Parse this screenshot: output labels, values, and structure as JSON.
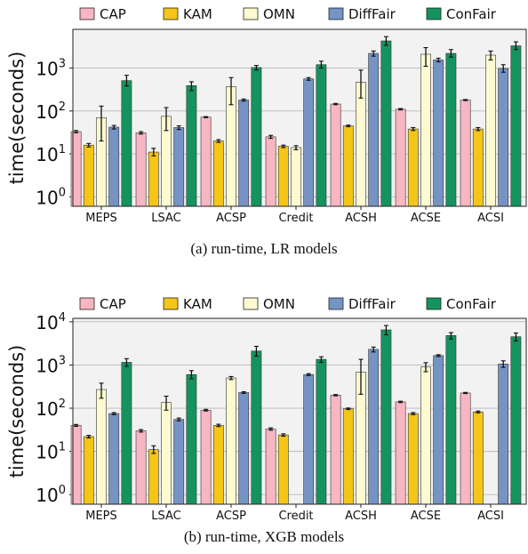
{
  "chart_data": [
    {
      "type": "bar",
      "caption": "(a) run-time, LR models",
      "ylabel": "time(seconds)",
      "yscale": "log",
      "ylim": [
        0.6,
        8000
      ],
      "yticks": [
        1,
        10,
        100,
        1000
      ],
      "ytick_labels": [
        [
          "10",
          "0"
        ],
        [
          "10",
          "1"
        ],
        [
          "10",
          "2"
        ],
        [
          "10",
          "3"
        ]
      ],
      "grid": true,
      "legend_position": "top",
      "categories": [
        "MEPS",
        "LSAC",
        "ACSP",
        "Credit",
        "ACSH",
        "ACSE",
        "ACSI"
      ],
      "series": [
        {
          "name": "CAP",
          "color": "#f7b6c2",
          "values": [
            33,
            31,
            72,
            25,
            145,
            110,
            180
          ],
          "err_low": [
            31,
            29,
            70,
            23,
            140,
            106,
            175
          ],
          "err_high": [
            35,
            33,
            74,
            27,
            150,
            114,
            185
          ]
        },
        {
          "name": "KAM",
          "color": "#f5c518",
          "values": [
            16,
            11,
            20,
            15,
            45,
            38,
            38
          ],
          "err_low": [
            14.5,
            9,
            18.5,
            14,
            43,
            35,
            35
          ],
          "err_high": [
            17.5,
            13.5,
            21.5,
            16,
            47,
            41,
            41
          ]
        },
        {
          "name": "OMN",
          "color": "#fdf9d0",
          "values": [
            70,
            75,
            370,
            14,
            470,
            2100,
            2000
          ],
          "err_low": [
            20,
            35,
            140,
            12.5,
            200,
            1100,
            1550
          ],
          "err_high": [
            130,
            120,
            600,
            15.5,
            900,
            3000,
            2500
          ]
        },
        {
          "name": "DiffFair",
          "color": "#7593c3",
          "values": [
            42,
            41,
            180,
            560,
            2200,
            1550,
            980
          ],
          "err_low": [
            38,
            37,
            170,
            520,
            1900,
            1400,
            800
          ],
          "err_high": [
            46,
            45,
            190,
            600,
            2500,
            1700,
            1200
          ]
        },
        {
          "name": "ConFair",
          "color": "#15935f",
          "values": [
            510,
            390,
            1030,
            1200,
            4300,
            2200,
            3300
          ],
          "err_low": [
            380,
            300,
            900,
            1000,
            3400,
            1800,
            2700
          ],
          "err_high": [
            680,
            480,
            1150,
            1450,
            5400,
            2700,
            4100
          ]
        }
      ]
    },
    {
      "type": "bar",
      "caption": "(b) run-time, XGB models",
      "ylabel": "time(seconds)",
      "yscale": "log",
      "ylim": [
        0.6,
        12000
      ],
      "yticks": [
        1,
        10,
        100,
        1000,
        10000
      ],
      "ytick_labels": [
        [
          "10",
          "0"
        ],
        [
          "10",
          "1"
        ],
        [
          "10",
          "2"
        ],
        [
          "10",
          "3"
        ],
        [
          "10",
          "4"
        ]
      ],
      "grid": true,
      "legend_position": "top",
      "categories": [
        "MEPS",
        "LSAC",
        "ACSP",
        "Credit",
        "ACSH",
        "ACSE",
        "ACSI"
      ],
      "series": [
        {
          "name": "CAP",
          "color": "#f7b6c2",
          "values": [
            40,
            30,
            90,
            33,
            200,
            140,
            225
          ],
          "err_low": [
            38,
            28,
            86,
            31,
            193,
            135,
            218
          ],
          "err_high": [
            42,
            32,
            94,
            35,
            207,
            145,
            232
          ]
        },
        {
          "name": "KAM",
          "color": "#f5c518",
          "values": [
            22,
            11,
            40,
            24,
            97,
            75,
            82
          ],
          "err_low": [
            20.5,
            9,
            37.5,
            22.5,
            93,
            71,
            78
          ],
          "err_high": [
            23.5,
            13.5,
            42.5,
            25.5,
            101,
            79,
            86
          ]
        },
        {
          "name": "OMN",
          "color": "#fdf9d0",
          "values": [
            270,
            135,
            500,
            null,
            680,
            900,
            null
          ],
          "err_low": [
            170,
            90,
            460,
            null,
            210,
            700,
            null
          ],
          "err_high": [
            380,
            190,
            540,
            null,
            1350,
            1130,
            null
          ]
        },
        {
          "name": "DiffFair",
          "color": "#7593c3",
          "values": [
            75,
            55,
            230,
            600,
            2300,
            1650,
            1050
          ],
          "err_low": [
            71,
            51,
            220,
            570,
            2000,
            1570,
            880
          ],
          "err_high": [
            79,
            59,
            240,
            630,
            2600,
            1730,
            1250
          ]
        },
        {
          "name": "ConFair",
          "color": "#15935f",
          "values": [
            1150,
            600,
            2100,
            1350,
            6500,
            4800,
            4500
          ],
          "err_low": [
            930,
            480,
            1600,
            1150,
            5000,
            4000,
            3600
          ],
          "err_high": [
            1400,
            740,
            2700,
            1550,
            8200,
            5600,
            5500
          ]
        }
      ]
    }
  ]
}
